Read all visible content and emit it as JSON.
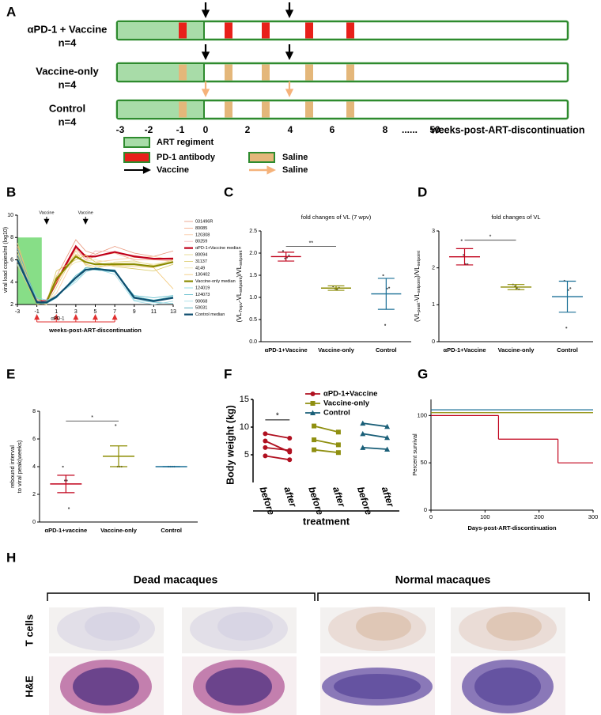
{
  "panel_labels": [
    "A",
    "B",
    "C",
    "D",
    "E",
    "F",
    "G",
    "H"
  ],
  "panel_a": {
    "rows": [
      {
        "name": "αPD-1 + Vaccine",
        "n": "n=4"
      },
      {
        "name": "Vaccine-only",
        "n": "n=4"
      },
      {
        "name": "Control",
        "n": "n=4"
      }
    ],
    "axis_ticks": [
      "-3",
      "-2",
      "-1",
      "0",
      "2",
      "4",
      "6",
      "8",
      "......",
      "50"
    ],
    "axis_label": "weeks-post-ART-discontinuation",
    "legend": [
      "ART regiment",
      "PD-1 antibody",
      "Saline",
      "Vaccine",
      "Saline"
    ]
  },
  "chart_data": [
    {
      "type": "line",
      "x_label": "weeks-post-ART-discontinuation",
      "y_label": "viral load copies/ml (log10)",
      "x": [
        -3,
        -1,
        0,
        1,
        3,
        4,
        5,
        7,
        9,
        11,
        13
      ],
      "xlim": [
        -3,
        13
      ],
      "xticks": [
        -3,
        -1,
        1,
        3,
        5,
        7,
        9,
        11,
        13
      ],
      "ylim": [
        2,
        10
      ],
      "yticks": [
        2,
        4,
        6,
        8,
        10
      ],
      "shade_x": [
        -3,
        -0.5
      ],
      "shade_top": 8,
      "vaccine_label": "Vaccine",
      "vaccine_x": [
        0,
        4
      ],
      "antibody_label": "αPD-1",
      "antibody_x": [
        -1,
        1,
        3,
        5,
        7
      ],
      "series": [
        {
          "name": "031496R",
          "color": "#e9967a",
          "width": 0.8,
          "values": [
            6.5,
            2.2,
            2.4,
            4.5,
            7.8,
            6.8,
            6.5,
            7.2,
            6.6,
            6.3,
            6.8
          ]
        },
        {
          "name": "80085",
          "color": "#f4a582",
          "width": 0.8,
          "values": [
            7.2,
            2.1,
            2.3,
            3.8,
            7.0,
            6.0,
            6.3,
            6.6,
            6.0,
            6.0,
            5.9
          ]
        },
        {
          "name": "120308",
          "color": "#fbc9a0",
          "width": 0.8,
          "values": [
            5.8,
            2.3,
            2.2,
            3.0,
            6.4,
            6.5,
            5.8,
            6.0,
            6.2,
            6.3,
            6.0
          ]
        },
        {
          "name": "80259",
          "color": "#f7b6b6",
          "width": 0.8,
          "values": [
            6.0,
            2.5,
            2.0,
            4.2,
            7.3,
            6.0,
            6.8,
            6.7,
            6.4,
            6.1,
            6.2
          ]
        },
        {
          "name": "αPD-1+Vaccine median",
          "color": "#c0001a",
          "width": 2.2,
          "values": [
            6.0,
            2.3,
            2.3,
            4.0,
            7.2,
            6.3,
            6.3,
            6.7,
            6.3,
            6.1,
            6.1
          ]
        },
        {
          "name": "80094",
          "color": "#e6d480",
          "width": 0.8,
          "values": [
            6.8,
            2.2,
            2.0,
            3.5,
            6.8,
            5.5,
            5.2,
            5.8,
            5.9,
            5.5,
            6.0
          ]
        },
        {
          "name": "31137",
          "color": "#d8c860",
          "width": 0.8,
          "values": [
            5.5,
            2.0,
            2.2,
            5.0,
            6.0,
            6.4,
            5.8,
            5.4,
            5.2,
            5.0,
            5.6
          ]
        },
        {
          "name": "4149",
          "color": "#efe3a8",
          "width": 0.8,
          "values": [
            6.2,
            2.4,
            2.1,
            4.6,
            5.8,
            5.9,
            6.0,
            5.7,
            5.8,
            5.6,
            5.9
          ]
        },
        {
          "name": "130402",
          "color": "#f2c46e",
          "width": 0.8,
          "values": [
            7.5,
            2.1,
            2.3,
            4.0,
            6.5,
            5.6,
            5.4,
            5.5,
            5.4,
            5.3,
            3.4
          ]
        },
        {
          "name": "Vaccine-only median",
          "color": "#8b8b00",
          "width": 2.2,
          "values": [
            6.0,
            2.2,
            2.2,
            4.3,
            6.3,
            5.8,
            5.6,
            5.6,
            5.6,
            5.4,
            5.8
          ]
        },
        {
          "name": "124019",
          "color": "#7fd3de",
          "width": 0.8,
          "values": [
            6.0,
            2.6,
            2.4,
            2.7,
            4.2,
            4.9,
            5.3,
            5.0,
            2.4,
            2.2,
            2.1
          ]
        },
        {
          "name": "124073",
          "color": "#4fb6c6",
          "width": 0.8,
          "values": [
            7.0,
            2.3,
            2.2,
            2.6,
            4.6,
            5.2,
            5.1,
            4.9,
            2.8,
            2.6,
            2.8
          ]
        },
        {
          "name": "90068",
          "color": "#a0dbe6",
          "width": 0.8,
          "values": [
            5.6,
            2.2,
            2.3,
            2.8,
            4.0,
            4.9,
            5.2,
            4.7,
            2.3,
            2.0,
            2.3
          ]
        },
        {
          "name": "50031",
          "color": "#3aa0b0",
          "width": 0.8,
          "values": [
            6.4,
            2.1,
            2.1,
            2.6,
            4.4,
            5.3,
            5.2,
            5.1,
            2.7,
            2.4,
            2.7
          ]
        },
        {
          "name": "Control median",
          "color": "#0e4d6e",
          "width": 2.2,
          "values": [
            6.0,
            2.2,
            2.2,
            2.7,
            4.4,
            5.1,
            5.2,
            5.0,
            2.6,
            2.3,
            2.6
          ]
        }
      ]
    },
    {
      "type": "dot",
      "title": "fold changes of VL (7 wpv)",
      "y_label_parts": [
        "(VL",
        "7wpv",
        "-VL",
        "setpoint",
        ")/VL",
        "setpoint"
      ],
      "categories": [
        "αPD-1+Vaccine",
        "Vaccine-only",
        "Control"
      ],
      "ylim": [
        0,
        2.5
      ],
      "yticks": [
        {
          "value": 0,
          "label": "0.0"
        },
        {
          "value": 0.5,
          "label": "0.5"
        },
        {
          "value": 1,
          "label": "1.0"
        },
        {
          "value": 1.5,
          "label": "1.5"
        },
        {
          "value": 2,
          "label": "2.0"
        },
        {
          "value": 2.5,
          "label": "2.5"
        }
      ],
      "groups": [
        {
          "color": "#c0001a",
          "points": [
            2.05,
            1.88,
            1.9,
            1.95
          ],
          "mean": 1.92,
          "sem": 0.1
        },
        {
          "color": "#8b8b00",
          "points": [
            1.25,
            1.2,
            1.18,
            1.22
          ],
          "mean": 1.21,
          "sem": 0.05
        },
        {
          "color": "#1a6f96",
          "points": [
            1.5,
            0.38,
            1.2,
            1.22
          ],
          "mean": 1.08,
          "sem": 0.35
        }
      ],
      "significance": {
        "text": "**",
        "from": 0,
        "to": 1,
        "y": 2.15
      }
    },
    {
      "type": "dot",
      "title": "fold changes of VL",
      "y_label_parts": [
        "(VL",
        "peak",
        "-VL",
        "setpoint",
        ")/VL",
        "setpoint"
      ],
      "categories": [
        "αPD-1+Vaccine",
        "Vaccine-only",
        "Control"
      ],
      "ylim": [
        0,
        3
      ],
      "yticks": [
        0,
        1,
        2,
        3
      ],
      "groups": [
        {
          "color": "#c0001a",
          "points": [
            2.75,
            2.35,
            2.1,
            2.1
          ],
          "mean": 2.3,
          "sem": 0.22
        },
        {
          "color": "#8b8b00",
          "points": [
            1.55,
            1.5,
            1.45,
            1.42
          ],
          "mean": 1.48,
          "sem": 0.07
        },
        {
          "color": "#1a6f96",
          "points": [
            1.65,
            0.38,
            1.4,
            1.45
          ],
          "mean": 1.22,
          "sem": 0.42
        }
      ],
      "significance": {
        "text": "*",
        "from": 0,
        "to": 1,
        "y": 2.75
      }
    },
    {
      "type": "dot",
      "y_label_lines": [
        "rebound interval",
        "to viral peak(weeks)"
      ],
      "categories": [
        "αPD-1+vaccine",
        "Vaccine-only",
        "Control"
      ],
      "ylim": [
        0,
        8
      ],
      "yticks": [
        0,
        2,
        4,
        6,
        8
      ],
      "groups": [
        {
          "color": "#c0001a",
          "points": [
            4,
            3,
            3,
            1
          ],
          "mean": 2.75,
          "sem": 0.63
        },
        {
          "color": "#8b8b00",
          "points": [
            7,
            4,
            4,
            4
          ],
          "mean": 4.75,
          "sem": 0.75
        },
        {
          "color": "#1a6f96",
          "points": [
            4,
            4,
            4,
            4
          ],
          "mean": 4,
          "sem": 0
        }
      ],
      "significance": {
        "text": "*",
        "from": 0,
        "to": 1,
        "y": 7.3
      }
    },
    {
      "type": "paired",
      "y_label": "Body weight (kg)",
      "x_label": "treatment",
      "categories": [
        "before",
        "after",
        "before",
        "after",
        "before",
        "after"
      ],
      "ylim": [
        0,
        15
      ],
      "yticks": [
        5,
        10,
        15
      ],
      "series": [
        {
          "name": "αPD-1+Vaccine",
          "color": "#b01020",
          "marker": "circle",
          "values": [
            [
              8.8,
              8.0
            ],
            [
              7.5,
              5.5
            ],
            [
              6.3,
              5.8
            ],
            [
              4.8,
              4.1
            ]
          ]
        },
        {
          "name": "Vaccine-only",
          "color": "#8f8f10",
          "marker": "square",
          "values": [
            [
              10.2,
              9.1
            ],
            [
              7.7,
              6.8
            ],
            [
              5.9,
              5.4
            ]
          ]
        },
        {
          "name": "Control",
          "color": "#1a5f78",
          "marker": "triangle",
          "values": [
            [
              10.7,
              10.1
            ],
            [
              8.8,
              8.1
            ],
            [
              6.3,
              6.0
            ]
          ]
        }
      ],
      "significance": {
        "text": "*",
        "group": 0,
        "y": 11.3
      }
    },
    {
      "type": "step",
      "y_label": "Percent survival",
      "x_label": "Days-post-ART-discontinuation",
      "xlim": [
        0,
        300
      ],
      "xticks": [
        0,
        100,
        200,
        300
      ],
      "ylim": [
        0,
        117
      ],
      "yticks": [
        0,
        50,
        100
      ],
      "series": [
        {
          "color": "#1a6f96",
          "x": [
            0,
            300
          ],
          "values": [
            106,
            106
          ]
        },
        {
          "color": "#8b8b00",
          "x": [
            0,
            300
          ],
          "values": [
            103,
            103
          ]
        },
        {
          "color": "#c0001a",
          "x": [
            0,
            125,
            235,
            300
          ],
          "values": [
            100,
            75,
            50,
            50
          ]
        }
      ]
    }
  ],
  "panel_h": {
    "groups": [
      "Dead macaques",
      "Normal macaques"
    ],
    "rows": [
      "T cells",
      "H&E"
    ]
  }
}
